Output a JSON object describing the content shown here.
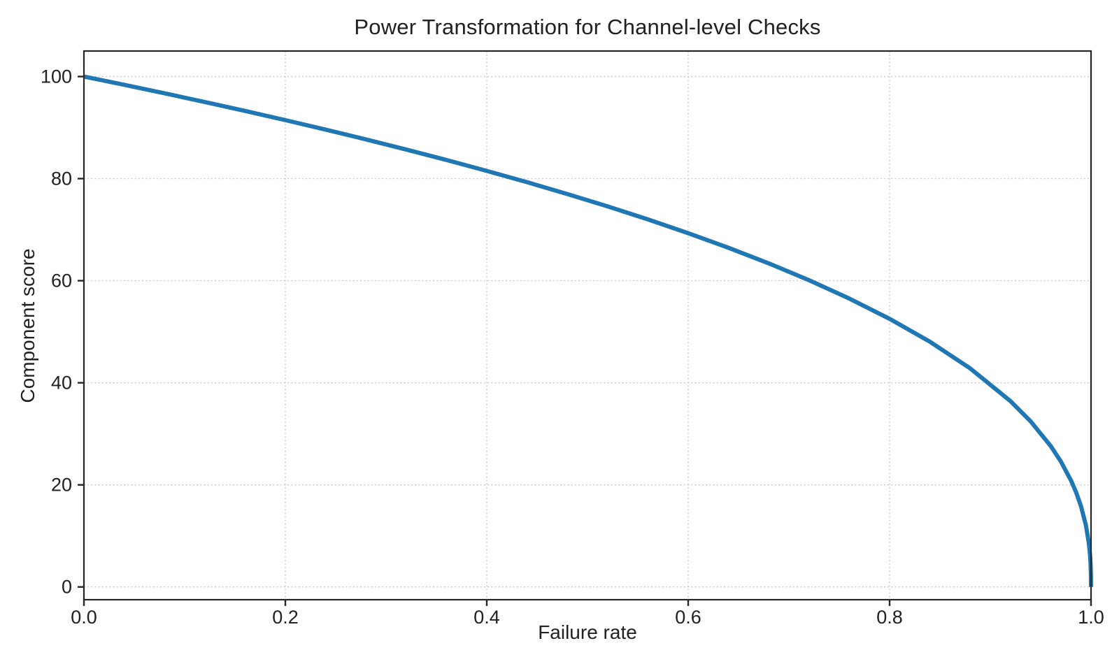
{
  "chart_data": {
    "type": "line",
    "title": "Power Transformation for Channel-level Checks",
    "xlabel": "Failure rate",
    "ylabel": "Component score",
    "xlim": [
      0.0,
      1.0
    ],
    "ylim": [
      -2.5,
      105
    ],
    "xticks": {
      "values": [
        0.0,
        0.2,
        0.4,
        0.6,
        0.8,
        1.0
      ],
      "labels": [
        "0.0",
        "0.2",
        "0.4",
        "0.6",
        "0.8",
        "1.0"
      ]
    },
    "yticks": {
      "values": [
        0,
        20,
        40,
        60,
        80,
        100
      ],
      "labels": [
        "0",
        "20",
        "40",
        "60",
        "80",
        "100"
      ]
    },
    "grid": {
      "visible": true,
      "style": "dotted",
      "color": "#c4c4c4"
    },
    "legend": {
      "visible": false
    },
    "series": [
      {
        "color": "#1f77b4",
        "linewidth": 6,
        "x": [
          0,
          0.04,
          0.08,
          0.12,
          0.16,
          0.2,
          0.24,
          0.28,
          0.32,
          0.36,
          0.4,
          0.44,
          0.48,
          0.52,
          0.56,
          0.6,
          0.64,
          0.68,
          0.72,
          0.76,
          0.8,
          0.84,
          0.88,
          0.92,
          0.94,
          0.96,
          0.97,
          0.98,
          0.985,
          0.99,
          0.995,
          0.998,
          0.999,
          0.9995,
          0.9999,
          1
        ],
        "y": [
          100,
          98.38,
          96.72,
          95.02,
          93.26,
          91.46,
          89.6,
          87.69,
          85.7,
          83.65,
          81.52,
          79.3,
          76.98,
          74.56,
          72.01,
          69.31,
          66.45,
          63.4,
          60.1,
          56.5,
          52.53,
          48.05,
          42.82,
          36.41,
          32.45,
          27.6,
          24.6,
          20.91,
          18.64,
          15.85,
          12.01,
          8.32,
          6.31,
          4.78,
          2.51,
          0
        ]
      }
    ]
  },
  "style": {
    "background": "#ffffff",
    "text_color": "#212121",
    "spine_color": "#262626",
    "tick_color": "#262626",
    "grid_color": "#c4c4c4",
    "line_color": "#1f77b4"
  }
}
